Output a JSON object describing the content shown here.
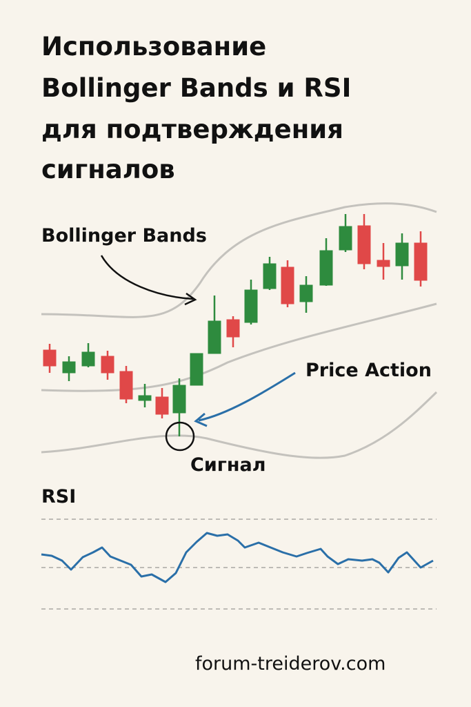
{
  "header": {
    "title_lines": [
      "Использование",
      "Bollinger Bands и RSI",
      "для подтверждения",
      "сигналов"
    ]
  },
  "labels": {
    "bollinger": "Bollinger Bands",
    "price_action": "Price Action",
    "signal": "Сигнал",
    "rsi": "RSI"
  },
  "footer": {
    "site": "forum-treiderov.com"
  }
}
